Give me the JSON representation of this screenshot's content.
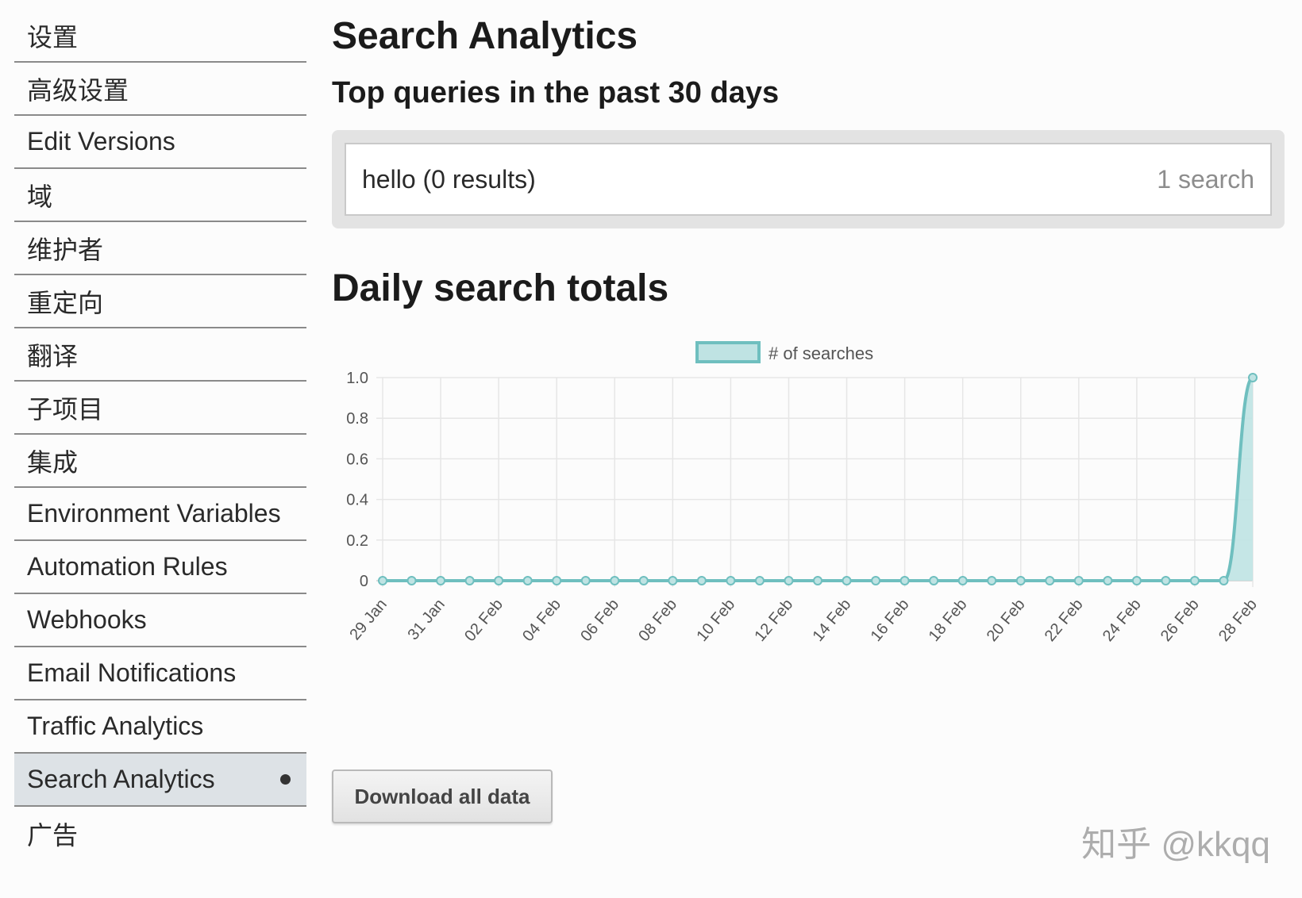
{
  "sidebar": {
    "items": [
      {
        "label": "设置",
        "active": false
      },
      {
        "label": "高级设置",
        "active": false
      },
      {
        "label": "Edit Versions",
        "active": false
      },
      {
        "label": "域",
        "active": false
      },
      {
        "label": "维护者",
        "active": false
      },
      {
        "label": "重定向",
        "active": false
      },
      {
        "label": "翻译",
        "active": false
      },
      {
        "label": "子项目",
        "active": false
      },
      {
        "label": "集成",
        "active": false
      },
      {
        "label": "Environment Variables",
        "active": false
      },
      {
        "label": "Automation Rules",
        "active": false
      },
      {
        "label": "Webhooks",
        "active": false
      },
      {
        "label": "Email Notifications",
        "active": false
      },
      {
        "label": "Traffic Analytics",
        "active": false
      },
      {
        "label": "Search Analytics",
        "active": true
      },
      {
        "label": "广告",
        "active": false
      }
    ]
  },
  "main": {
    "title": "Search Analytics",
    "subtitle": "Top queries in the past 30 days",
    "queries": [
      {
        "text": "hello (0 results)",
        "count": "1 search"
      }
    ],
    "chart_heading": "Daily search totals",
    "download_label": "Download all data"
  },
  "watermark": "知乎 @kkqq",
  "colors": {
    "series_line": "#6fbfbf",
    "series_fill": "#bfe3e3",
    "active_nav_bg": "#dde2e6"
  },
  "chart_data": {
    "type": "area",
    "legend": "# of searches",
    "legend_position": "top-center",
    "grid": true,
    "x": [
      "29 Jan",
      "30 Jan",
      "31 Jan",
      "01 Feb",
      "02 Feb",
      "03 Feb",
      "04 Feb",
      "05 Feb",
      "06 Feb",
      "07 Feb",
      "08 Feb",
      "09 Feb",
      "10 Feb",
      "11 Feb",
      "12 Feb",
      "13 Feb",
      "14 Feb",
      "15 Feb",
      "16 Feb",
      "17 Feb",
      "18 Feb",
      "19 Feb",
      "20 Feb",
      "21 Feb",
      "22 Feb",
      "23 Feb",
      "24 Feb",
      "25 Feb",
      "26 Feb",
      "27 Feb",
      "28 Feb"
    ],
    "x_tick_labels": [
      "29 Jan",
      "31 Jan",
      "02 Feb",
      "04 Feb",
      "06 Feb",
      "08 Feb",
      "10 Feb",
      "12 Feb",
      "14 Feb",
      "16 Feb",
      "18 Feb",
      "20 Feb",
      "22 Feb",
      "24 Feb",
      "26 Feb",
      "28 Feb"
    ],
    "series": [
      {
        "name": "# of searches",
        "values": [
          0,
          0,
          0,
          0,
          0,
          0,
          0,
          0,
          0,
          0,
          0,
          0,
          0,
          0,
          0,
          0,
          0,
          0,
          0,
          0,
          0,
          0,
          0,
          0,
          0,
          0,
          0,
          0,
          0,
          0,
          1
        ]
      }
    ],
    "y_ticks": [
      "0",
      "0.2",
      "0.4",
      "0.6",
      "0.8",
      "1.0"
    ],
    "ylim": [
      0,
      1
    ]
  }
}
